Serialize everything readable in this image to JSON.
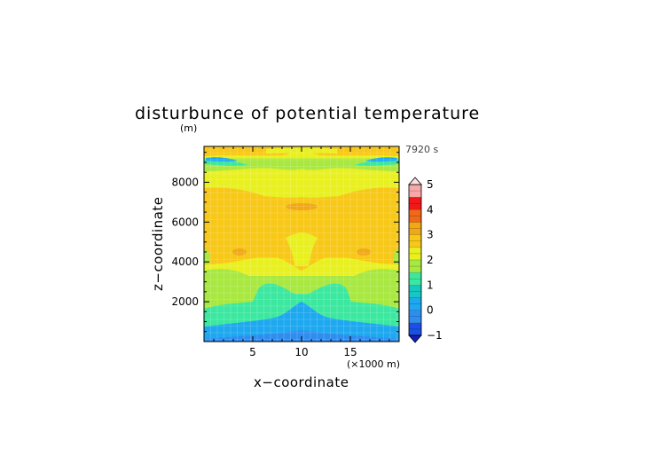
{
  "chart_data": {
    "type": "heatmap",
    "title": "disturbunce of potential temperature",
    "time_label": "7920 s",
    "xlabel": "x−coordinate",
    "ylabel": "z−coordinate",
    "x_unit": "(×1000 m)",
    "y_unit": "(m)",
    "xlim": [
      0,
      20
    ],
    "ylim": [
      0,
      9800
    ],
    "x_ticks": [
      5,
      10,
      15
    ],
    "y_ticks": [
      2000,
      4000,
      6000,
      8000
    ],
    "colorbar": {
      "range": [
        -1,
        5
      ],
      "tick_values": [
        5,
        4,
        3,
        2,
        1,
        0,
        -1
      ],
      "tick_labels": [
        "5",
        "4",
        "3",
        "2",
        "1",
        "0",
        "−1"
      ],
      "step": 0.25,
      "colors": [
        {
          "from": -1.0,
          "to": -0.5,
          "color": "#1a50e6"
        },
        {
          "from": -0.5,
          "to": 0.0,
          "color": "#2f8df0"
        },
        {
          "from": 0.0,
          "to": 0.5,
          "color": "#1ea8f0"
        },
        {
          "from": 0.5,
          "to": 1.0,
          "color": "#18c8c0"
        },
        {
          "from": 1.0,
          "to": 1.5,
          "color": "#3ce8a0"
        },
        {
          "from": 1.5,
          "to": 2.0,
          "color": "#a8e840"
        },
        {
          "from": 2.0,
          "to": 2.5,
          "color": "#e8f020"
        },
        {
          "from": 2.5,
          "to": 3.0,
          "color": "#f8c818"
        },
        {
          "from": 3.0,
          "to": 3.5,
          "color": "#f0a818"
        },
        {
          "from": 3.5,
          "to": 4.0,
          "color": "#f06818"
        },
        {
          "from": 4.0,
          "to": 4.5,
          "color": "#f01818"
        },
        {
          "from": 4.5,
          "to": 5.0,
          "color": "#f8a8a8"
        }
      ]
    },
    "bands": [
      {
        "z": [
          0,
          200
        ],
        "value": -0.3
      },
      {
        "z": [
          200,
          1000
        ],
        "value": 0.3
      },
      {
        "z": [
          1000,
          2400
        ],
        "value": 1.0
      },
      {
        "z": [
          2400,
          3300
        ],
        "value": 1.7
      },
      {
        "z": [
          3300,
          4200
        ],
        "value": 2.3
      },
      {
        "z": [
          4200,
          7200
        ],
        "value": 2.7
      },
      {
        "z": [
          7200,
          8400
        ],
        "value": 2.4
      },
      {
        "z": [
          8400,
          8800
        ],
        "value": 2.2
      },
      {
        "z": [
          8800,
          9200
        ],
        "value": 1.6
      },
      {
        "z": [
          9200,
          9800
        ],
        "value": 2.4
      }
    ],
    "features": [
      {
        "x": 10,
        "z": 350,
        "value": 0.3,
        "note": "tip of central blue dome"
      },
      {
        "x": 3.5,
        "z": 2000,
        "value": 1.1,
        "note": "cyan tongue left"
      },
      {
        "x": 16.5,
        "z": 2000,
        "value": 1.1,
        "note": "cyan tongue right"
      },
      {
        "x": 10,
        "z": 4400,
        "value": 2.2,
        "note": "yellow central stem"
      },
      {
        "x": 10,
        "z": 6800,
        "value": 3.1,
        "note": "orange core top"
      },
      {
        "x": 3.5,
        "z": 4500,
        "value": 3.1,
        "note": "orange patch left"
      },
      {
        "x": 16.5,
        "z": 4500,
        "value": 3.1,
        "note": "orange patch right"
      },
      {
        "x": 1.5,
        "z": 9100,
        "value": 0.4,
        "note": "blue streak left top"
      },
      {
        "x": 18.5,
        "z": 9100,
        "value": 0.4,
        "note": "blue streak right top"
      }
    ]
  }
}
